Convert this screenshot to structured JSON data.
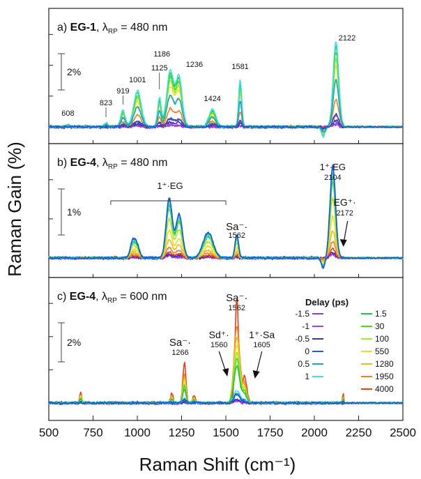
{
  "chart_data": {
    "type": "line",
    "xlabel": "Raman Shift (cm⁻¹)",
    "ylabel": "Raman Gain (%)",
    "xlim": [
      500,
      2500
    ],
    "x_ticks": [
      "500",
      "750",
      "1000",
      "1250",
      "1500",
      "1750",
      "2000",
      "2250",
      "2500"
    ],
    "legend": {
      "title": "Delay (ps)",
      "placement": "right of panel c",
      "entries": [
        {
          "label": "-1.5",
          "color": "#8e3fd0"
        },
        {
          "label": "-1",
          "color": "#a040e0"
        },
        {
          "label": "-0.5",
          "color": "#3a30c0"
        },
        {
          "label": "0",
          "color": "#1f55d8"
        },
        {
          "label": "0.5",
          "color": "#12a8c8"
        },
        {
          "label": "1",
          "color": "#40e0e8"
        },
        {
          "label": "1.5",
          "color": "#22c840"
        },
        {
          "label": "30",
          "color": "#44e020"
        },
        {
          "label": "100",
          "color": "#a8e820"
        },
        {
          "label": "550",
          "color": "#e8e020"
        },
        {
          "label": "1280",
          "color": "#f0b818"
        },
        {
          "label": "1950",
          "color": "#f08020"
        },
        {
          "label": "4000",
          "color": "#e84018"
        }
      ]
    },
    "panels": [
      {
        "id": "a",
        "prefix": "a) ",
        "sample": "EG-1",
        "pump_prefix": ", λ",
        "pump_sub": "RP",
        "pump_suffix": " = 480 nm",
        "scale_bar": "2%",
        "scale_bar_percent": 2,
        "units_per_percent": 1.0,
        "annotations": [
          {
            "text": "608",
            "x": 608
          },
          {
            "text": "823",
            "x": 823
          },
          {
            "text": "919",
            "x": 919
          },
          {
            "text": "1001",
            "x": 1001
          },
          {
            "text": "1125",
            "x": 1125
          },
          {
            "text": "1186",
            "x": 1186
          },
          {
            "text": "1236",
            "x": 1236
          },
          {
            "text": "1424",
            "x": 1424
          },
          {
            "text": "1581",
            "x": 1581
          },
          {
            "text": "2122",
            "x": 2122
          }
        ],
        "peaks": [
          {
            "x": 608,
            "w": 12,
            "a": 0.12
          },
          {
            "x": 823,
            "w": 12,
            "a": 0.22
          },
          {
            "x": 919,
            "w": 18,
            "a": 0.9
          },
          {
            "x": 1001,
            "w": 30,
            "a": 2.0
          },
          {
            "x": 1125,
            "w": 14,
            "a": 1.6
          },
          {
            "x": 1186,
            "w": 28,
            "a": 3.1
          },
          {
            "x": 1236,
            "w": 25,
            "a": 2.7
          },
          {
            "x": 1424,
            "w": 28,
            "a": 0.95
          },
          {
            "x": 1581,
            "w": 12,
            "a": 2.6
          },
          {
            "x": 2050,
            "w": 14,
            "a": -0.55
          },
          {
            "x": 2122,
            "w": 22,
            "a": 4.7
          }
        ],
        "series_scale": [
          0.04,
          0.03,
          0.08,
          0.15,
          0.55,
          1.0,
          0.95,
          0.88,
          0.8,
          0.72,
          0.55,
          0.32,
          0.14
        ]
      },
      {
        "id": "b",
        "prefix": "b) ",
        "sample": "EG-4",
        "pump_prefix": ", λ",
        "pump_sub": "RP",
        "pump_suffix": " = 480 nm",
        "scale_bar": "1%",
        "scale_bar_percent": 1,
        "units_per_percent": 2.0,
        "annotations": [
          {
            "text": "1⁺·EG",
            "x": 1185
          },
          {
            "text": "Sa⁻·",
            "x": 1562
          },
          {
            "text": "1562",
            "x": 1562
          },
          {
            "text": "1⁺·EG",
            "x": 2104
          },
          {
            "text": "2104",
            "x": 2104
          },
          {
            "text": "EG⁺·",
            "x": 2172
          },
          {
            "text": "2172",
            "x": 2172
          }
        ],
        "bracket_range": [
          850,
          1500
        ],
        "peaks": [
          {
            "x": 975,
            "w": 20,
            "a": 0.75
          },
          {
            "x": 1001,
            "w": 18,
            "a": 0.5
          },
          {
            "x": 1180,
            "w": 24,
            "a": 2.6
          },
          {
            "x": 1236,
            "w": 26,
            "a": 1.9
          },
          {
            "x": 1400,
            "w": 40,
            "a": 1.1
          },
          {
            "x": 1562,
            "w": 14,
            "a": 1.0
          },
          {
            "x": 2050,
            "w": 14,
            "a": -0.45
          },
          {
            "x": 2104,
            "w": 22,
            "a": 4.0
          }
        ],
        "series_scale": [
          0.05,
          0.03,
          0.06,
          1.0,
          0.98,
          0.92,
          0.88,
          0.82,
          0.65,
          0.45,
          0.3,
          0.18,
          0.1
        ]
      },
      {
        "id": "c",
        "prefix": "c) ",
        "sample": "EG-4",
        "pump_prefix": ", λ",
        "pump_sub": "RP",
        "pump_suffix": " = 600 nm",
        "scale_bar": "2%",
        "scale_bar_percent": 2,
        "units_per_percent": 1.0,
        "annotations": [
          {
            "text": "Sa⁻·",
            "x": 1266
          },
          {
            "text": "1266",
            "x": 1266
          },
          {
            "text": "Sd⁺·",
            "x": 1560
          },
          {
            "text": "1560",
            "x": 1560
          },
          {
            "text": "Sa⁻·",
            "x": 1562
          },
          {
            "text": "1562",
            "x": 1562
          },
          {
            "text": "1⁺·Sa",
            "x": 1605
          },
          {
            "text": "1605",
            "x": 1605
          }
        ],
        "peaks": [
          {
            "x": 680,
            "w": 8,
            "a": 0.6
          },
          {
            "x": 1195,
            "w": 10,
            "a": 0.5
          },
          {
            "x": 1266,
            "w": 12,
            "a": 2.1
          },
          {
            "x": 1320,
            "w": 10,
            "a": 0.4
          },
          {
            "x": 1562,
            "w": 14,
            "a": 5.4
          },
          {
            "x": 1605,
            "w": 18,
            "a": 1.4
          },
          {
            "x": 2165,
            "w": 8,
            "a": 0.45
          }
        ],
        "series_scale": [
          0.02,
          0.02,
          0.03,
          0.08,
          0.1,
          0.12,
          0.35,
          0.42,
          0.48,
          0.55,
          0.62,
          0.72,
          1.0
        ]
      }
    ]
  }
}
